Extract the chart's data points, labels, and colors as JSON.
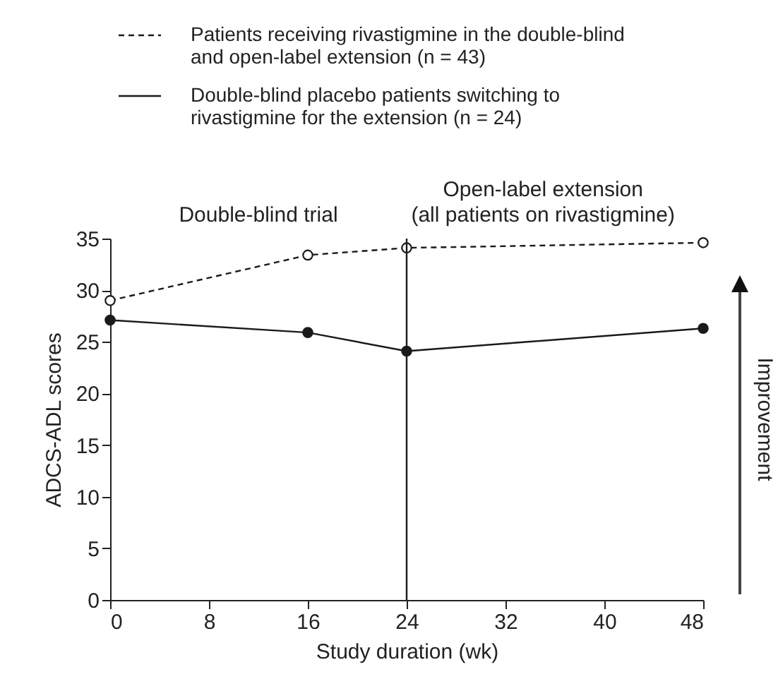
{
  "chart_data": {
    "type": "line",
    "xlabel": "Study duration (wk)",
    "ylabel": "ADCS-ADL scores",
    "x": [
      0,
      16,
      24,
      48
    ],
    "series": [
      {
        "name": "Patients receiving rivastigmine in the double-blind and open-label extension (n = 43)",
        "color": "#1a1a1a",
        "line_style": "dashed",
        "values": [
          29.0,
          33.4,
          34.1,
          34.6
        ]
      },
      {
        "name": "Double-blind placebo patients switching to rivastigmine for the extension (n = 24)",
        "color": "#1a1a1a",
        "line_style": "solid",
        "values": [
          27.1,
          25.9,
          24.1,
          26.3
        ]
      }
    ],
    "xlim": [
      0,
      48
    ],
    "xticks": [
      0,
      8,
      16,
      24,
      32,
      40,
      48
    ],
    "ylim": [
      0,
      35
    ],
    "yticks": [
      0,
      5,
      10,
      15,
      20,
      25,
      30,
      35
    ],
    "ref_lines": [
      {
        "axis": "x",
        "value": 24
      }
    ],
    "annotations": [
      "Double-blind trial",
      "Open-label extension\n(all patients on rivastigmine)",
      "Improvement"
    ],
    "marker": "circle",
    "legend": "top",
    "grid": false
  }
}
